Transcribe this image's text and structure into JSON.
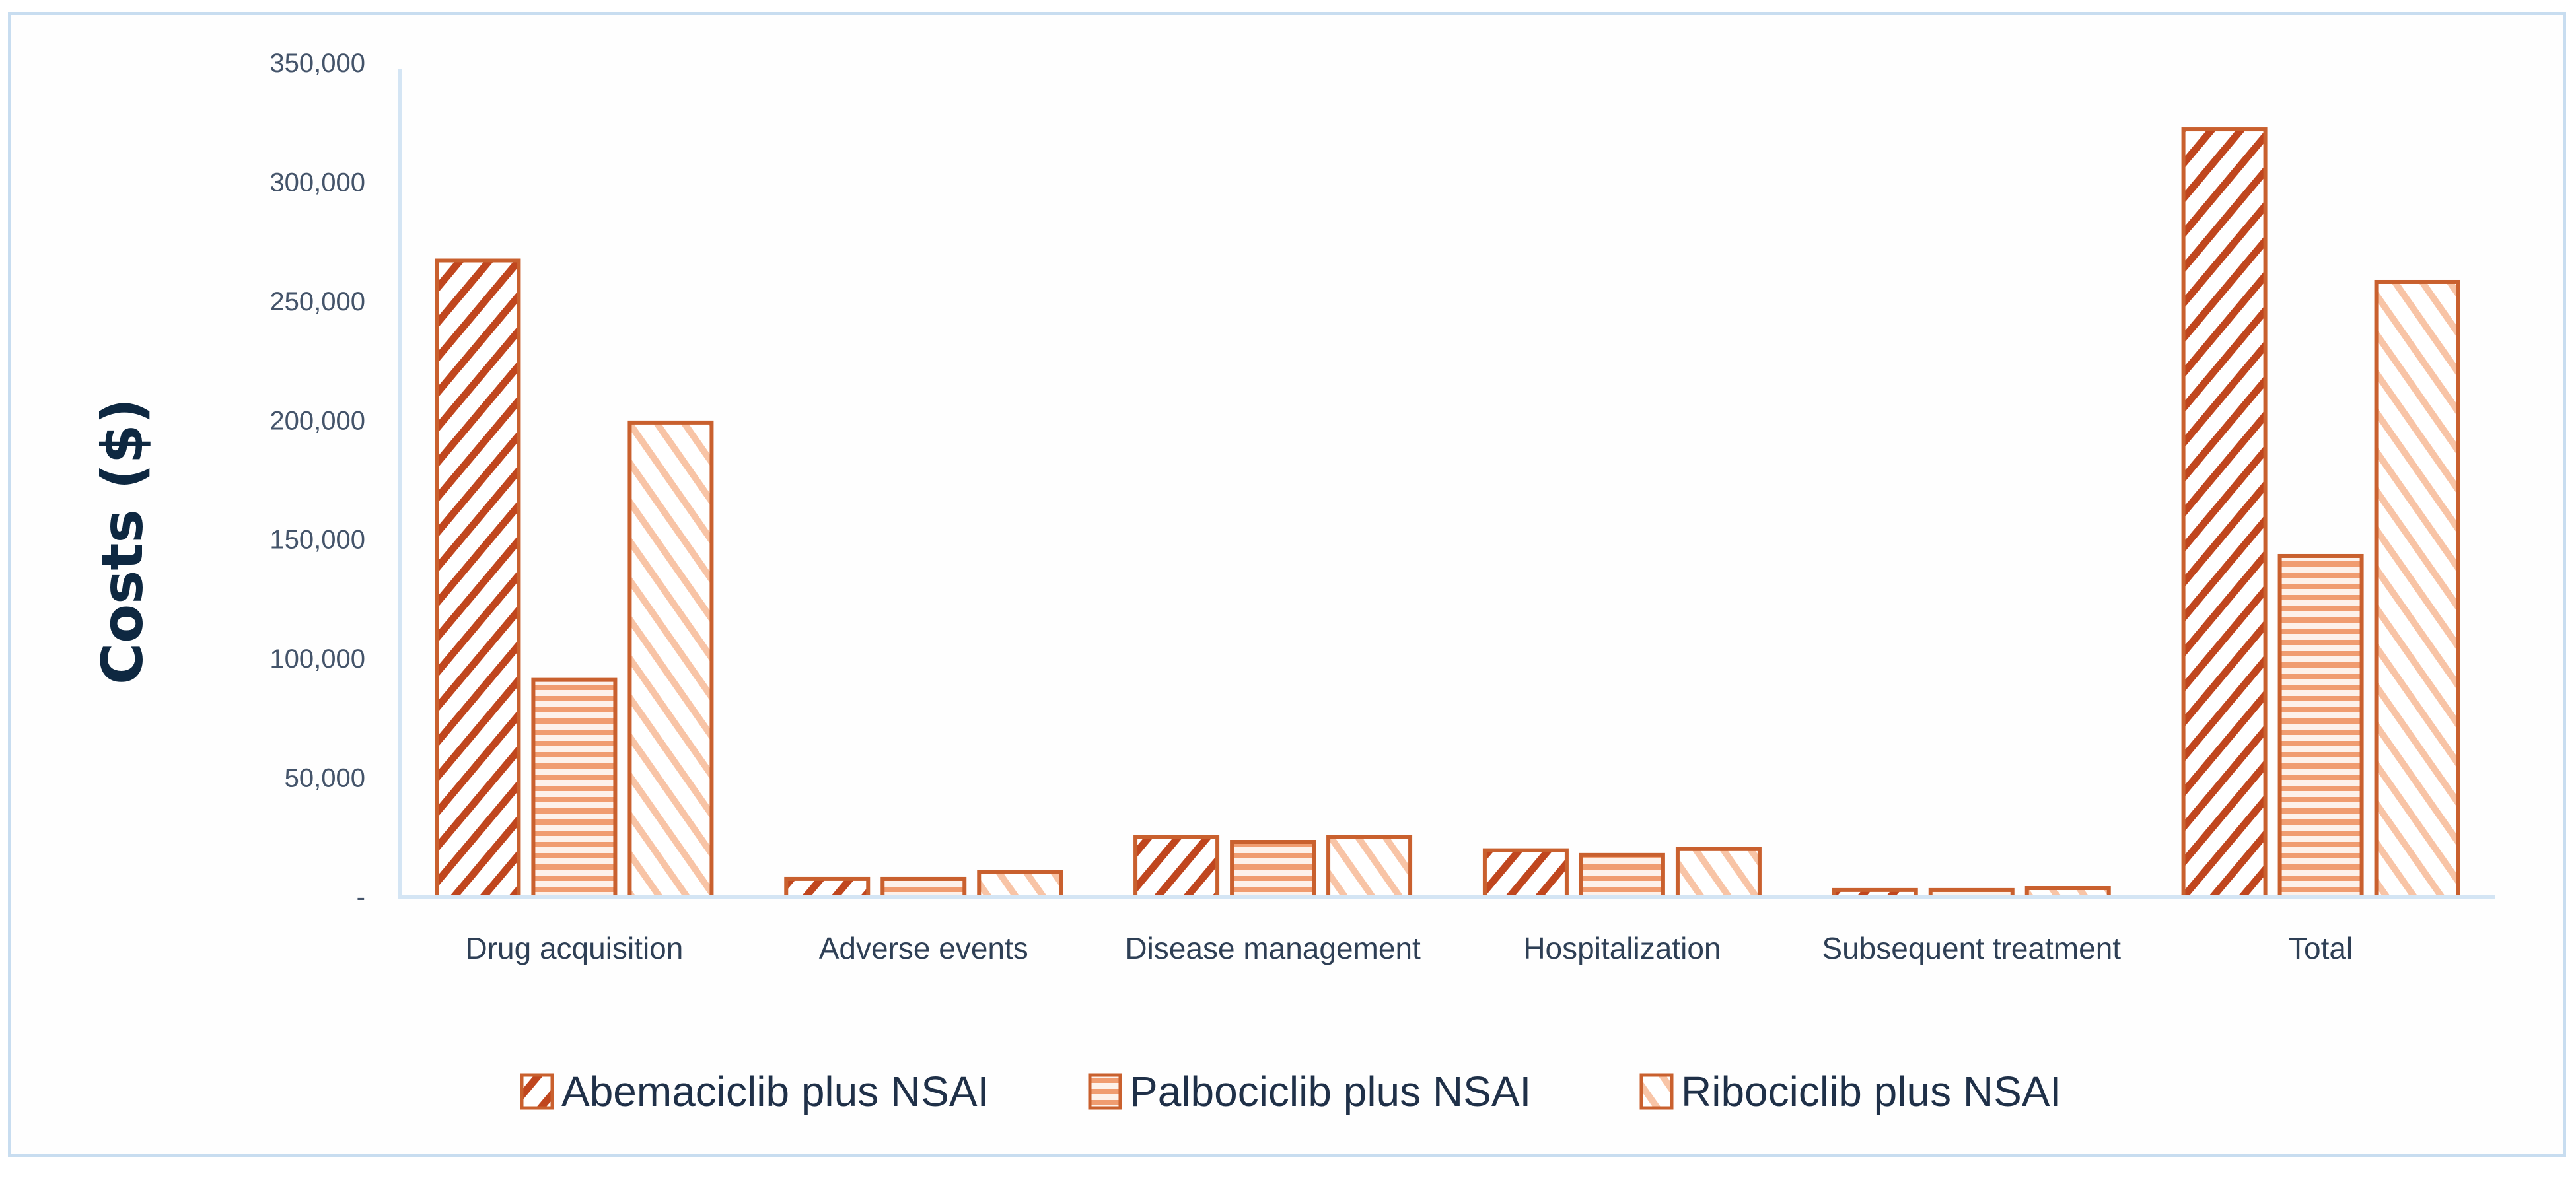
{
  "chart_data": {
    "type": "bar",
    "title": "",
    "xlabel": "",
    "ylabel": "Costs ($)",
    "ylim": [
      0,
      350000
    ],
    "yticks": [
      0,
      50000,
      100000,
      150000,
      200000,
      250000,
      300000,
      350000
    ],
    "ytick_labels": [
      "-",
      "50,000",
      "100,000",
      "150,000",
      "200,000",
      "250,000",
      "300,000",
      "350,000"
    ],
    "grid": false,
    "legend_position": "bottom",
    "categories": [
      "Drug acquisition",
      "Adverse events",
      "Disease management",
      "Hospitalization",
      "Subsequent treatment",
      "Total"
    ],
    "series": [
      {
        "name": "Abemaciclib plus NSAI",
        "pattern": "diagonal-forward",
        "color": "#c0461e",
        "values": [
          267000,
          7500,
          25000,
          19500,
          2800,
          322000
        ]
      },
      {
        "name": "Palbociclib plus NSAI",
        "pattern": "horizontal",
        "color": "#f09c70",
        "values": [
          91000,
          7500,
          23000,
          17500,
          2800,
          143000
        ]
      },
      {
        "name": "Ribociclib plus NSAI",
        "pattern": "diagonal-backward",
        "color": "#f5b896",
        "values": [
          199000,
          10500,
          25000,
          20000,
          3600,
          258000
        ]
      }
    ]
  },
  "colors": {
    "frame_border": "#c8ddf0",
    "axis_line": "#d4e5f4",
    "bar_outline": "#c9602e",
    "text_dark": "#0e2841",
    "tick_text": "#44546a"
  }
}
